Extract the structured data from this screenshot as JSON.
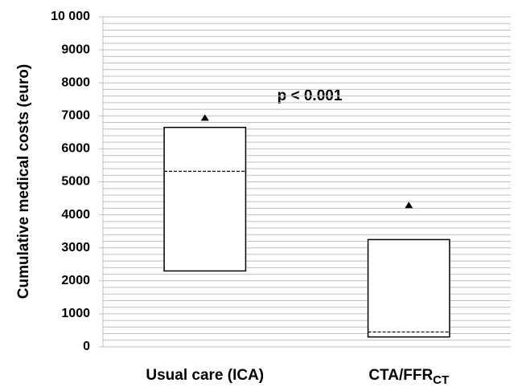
{
  "chart_data": {
    "type": "box",
    "y_label": "Cumulative medical costs (euro)",
    "annotation": "p < 0.001",
    "categories": [
      "Usual care (ICA)",
      "CTA/FFR"
    ],
    "category_subscripts": {
      "CTA/FFR": "CT"
    },
    "low": [
      2300,
      300
    ],
    "high": [
      6650,
      3250
    ],
    "median": [
      5320,
      450
    ],
    "marker": [
      6950,
      4300
    ],
    "ylim": [
      0,
      10000
    ],
    "yticks": [
      0,
      1000,
      2000,
      3000,
      4000,
      5000,
      6000,
      7000,
      8000,
      9000,
      {
        "value": 10000,
        "label": "10 000"
      }
    ],
    "grid": true,
    "gridlines": [
      200,
      400,
      600,
      800,
      1000,
      1200,
      1400,
      1600,
      1800,
      2000,
      2200,
      2400,
      2600,
      2800,
      3000,
      3200,
      3400,
      3600,
      3800,
      4000,
      4200,
      4400,
      4600,
      4800,
      5000,
      5200,
      5400,
      5600,
      5800,
      6000,
      6200,
      6400,
      6600,
      6800,
      7000,
      7200,
      7400,
      7600,
      7800,
      8000,
      8200,
      8400,
      8600,
      8800,
      9000,
      9200,
      9400,
      9600,
      9800,
      10000
    ],
    "box_color": "#ffffff",
    "marker_color": "#000000"
  }
}
